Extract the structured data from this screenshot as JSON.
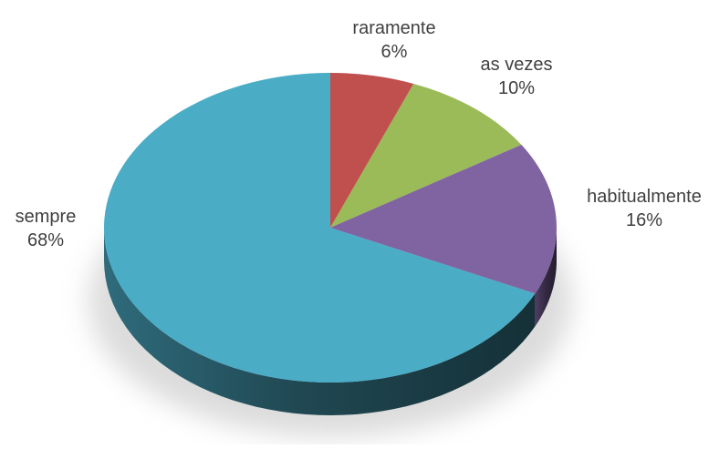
{
  "chart_data": {
    "type": "pie",
    "style": "3d",
    "title": "",
    "start_angle_deg": 0,
    "direction": "clockwise",
    "legend": "none",
    "slices": [
      {
        "label": "raramente",
        "percent_label": "6%",
        "value": 6,
        "color": "#c0504d"
      },
      {
        "label": "as vezes",
        "percent_label": "10%",
        "value": 10,
        "color": "#9bbb59"
      },
      {
        "label": "habitualmente",
        "percent_label": "16%",
        "value": 16,
        "color": "#8064a2"
      },
      {
        "label": "sempre",
        "percent_label": "68%",
        "value": 68,
        "color": "#4bacc6"
      }
    ]
  }
}
